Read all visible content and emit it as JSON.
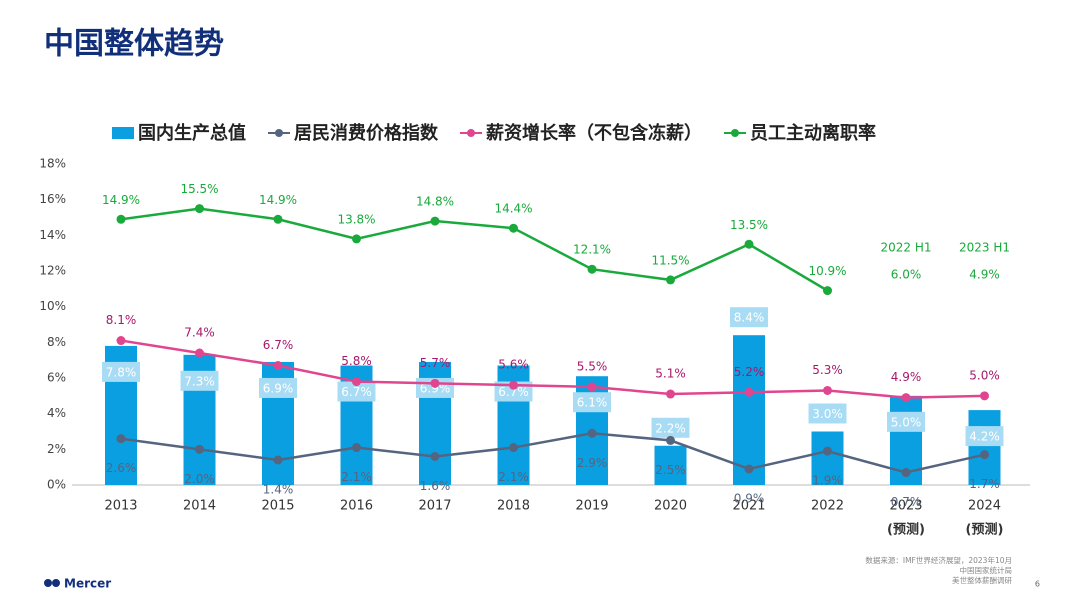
{
  "chart_data": {
    "type": "bar_line",
    "title": "中国整体趋势",
    "categories": [
      "2013",
      "2014",
      "2015",
      "2016",
      "2017",
      "2018",
      "2019",
      "2020",
      "2021",
      "2022",
      "2023",
      "2024"
    ],
    "forecast_label": "(预测)",
    "ylim": [
      0,
      18
    ],
    "yticks": [
      {
        "value": 0,
        "label": "0%"
      },
      {
        "value": 2,
        "label": "2%"
      },
      {
        "value": 4,
        "label": "4%"
      },
      {
        "value": 6,
        "label": "6%"
      },
      {
        "value": 8,
        "label": "8%"
      },
      {
        "value": 10,
        "label": "10%"
      },
      {
        "value": 12,
        "label": "12%"
      },
      {
        "value": 14,
        "label": "14%"
      },
      {
        "value": 16,
        "label": "16%"
      },
      {
        "value": 18,
        "label": "18%"
      }
    ],
    "series": [
      {
        "name": "国内生产总值",
        "kind": "bar",
        "color": "#0a9fe0",
        "values": [
          7.8,
          7.3,
          6.9,
          6.7,
          6.9,
          6.7,
          6.1,
          2.2,
          8.4,
          3.0,
          5.0,
          4.2
        ],
        "value_labels": [
          "7.8%",
          "7.3%",
          "6.9%",
          "6.7%",
          "6.9%",
          "6.7%",
          "6.1%",
          "2.2%",
          "8.4%",
          "3.0%",
          "5.0%",
          "4.2%"
        ]
      },
      {
        "name": "居民消费价格指数",
        "kind": "line",
        "color": "#56657f",
        "values": [
          2.6,
          2.0,
          1.4,
          2.1,
          1.6,
          2.1,
          2.9,
          2.5,
          0.9,
          1.9,
          0.7,
          1.7
        ],
        "value_labels": [
          "2.6%",
          "2.0%",
          "1.4%",
          "2.1%",
          "1.6%",
          "2.1%",
          "2.9%",
          "2.5%",
          "0.9%",
          "1.9%",
          "0.7%",
          "1.7%"
        ]
      },
      {
        "name": "薪资增长率（不包含冻薪）",
        "kind": "line",
        "color": "#e0468f",
        "values": [
          8.1,
          7.4,
          6.7,
          5.8,
          5.7,
          5.6,
          5.5,
          5.1,
          5.2,
          5.3,
          4.9,
          5.0
        ],
        "value_labels": [
          "8.1%",
          "7.4%",
          "6.7%",
          "5.8%",
          "5.7%",
          "5.6%",
          "5.5%",
          "5.1%",
          "5.2%",
          "5.3%",
          "4.9%",
          "5.0%"
        ]
      },
      {
        "name": "员工主动离职率",
        "kind": "line",
        "color": "#1aaa3c",
        "values": [
          14.9,
          15.5,
          14.9,
          13.8,
          14.8,
          14.4,
          12.1,
          11.5,
          13.5,
          10.9,
          null,
          null
        ],
        "value_labels": [
          "14.9%",
          "15.5%",
          "14.9%",
          "13.8%",
          "14.8%",
          "14.4%",
          "12.1%",
          "11.5%",
          "13.5%",
          "10.9%",
          null,
          null
        ]
      }
    ],
    "annotations": [
      {
        "period": "2022 H1",
        "rate": "6.0%"
      },
      {
        "period": "2023 H1",
        "rate": "4.9%"
      }
    ],
    "source": [
      "数据来源：IMF世界经济展望，2023年10月",
      "中国国家统计局",
      "美世整体薪酬调研"
    ],
    "logo": "Mercer",
    "page_number": "6"
  }
}
